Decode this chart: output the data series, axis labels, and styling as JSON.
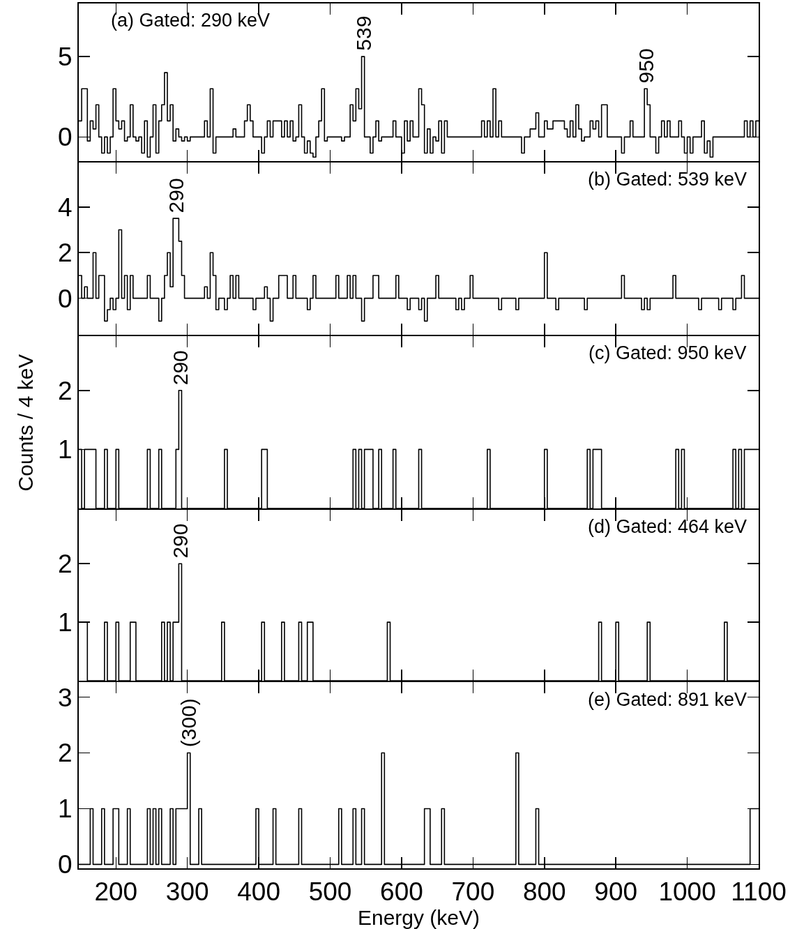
{
  "chart_data": [
    {
      "type": "step",
      "title": "(a) Gated: 290 keV",
      "color": "#000000",
      "xlim": [
        148,
        1100
      ],
      "xticks": [
        200,
        300,
        400,
        500,
        600,
        700,
        800,
        900,
        1000,
        1100
      ],
      "ylim": [
        -1.5,
        8.3
      ],
      "yticks": [
        0,
        5
      ],
      "tick_labels": "y",
      "x": [
        148,
        152,
        160,
        164,
        168,
        172,
        176,
        180,
        184,
        188,
        192,
        196,
        200,
        204,
        208,
        212,
        216,
        220,
        224,
        228,
        232,
        236,
        240,
        244,
        248,
        252,
        256,
        260,
        264,
        268,
        272,
        276,
        280,
        284,
        288,
        292,
        296,
        300,
        304,
        324,
        328,
        332,
        336,
        340,
        364,
        368,
        380,
        384,
        388,
        392,
        404,
        408,
        412,
        416,
        420,
        432,
        436,
        440,
        444,
        448,
        452,
        456,
        460,
        464,
        468,
        472,
        476,
        480,
        484,
        488,
        492,
        496,
        516,
        520,
        528,
        532,
        536,
        540,
        544,
        548,
        556,
        560,
        564,
        568,
        572,
        588,
        592,
        600,
        604,
        608,
        612,
        616,
        624,
        628,
        632,
        636,
        640,
        644,
        648,
        652,
        656,
        660,
        664,
        712,
        716,
        720,
        724,
        728,
        732,
        736,
        740,
        768,
        772,
        780,
        788,
        792,
        800,
        804,
        812,
        828,
        832,
        836,
        840,
        844,
        848,
        852,
        856,
        864,
        868,
        872,
        876,
        880,
        888,
        908,
        912,
        920,
        924,
        940,
        944,
        948,
        956,
        960,
        964,
        968,
        972,
        976,
        988,
        992,
        996,
        1000,
        1004,
        1008,
        1020,
        1024,
        1028,
        1032,
        1036,
        1080,
        1084,
        1088,
        1092,
        1096,
        1100
      ],
      "values": [
        1,
        3,
        -0.25,
        1,
        0.5,
        2,
        0,
        -1,
        0,
        -1,
        0,
        3,
        1,
        0.5,
        1,
        -0.25,
        0,
        2,
        0,
        -0.25,
        0,
        -1,
        1,
        -1.25,
        0,
        2,
        -1,
        1,
        2,
        4,
        1,
        2,
        -0.25,
        0.5,
        0,
        -0.25,
        0,
        -0.25,
        0,
        1,
        0,
        3,
        -1,
        0,
        0.5,
        0,
        1,
        2,
        1,
        0,
        -1,
        0,
        1,
        0,
        1,
        0,
        1,
        0,
        1,
        -0.25,
        0,
        2,
        0,
        -1,
        -0.25,
        -1,
        -1.25,
        0,
        1,
        3,
        -0.25,
        0,
        -0.25,
        0,
        2,
        1,
        3,
        1.75,
        5,
        0,
        -1,
        0,
        1,
        -0.25,
        0,
        1,
        0,
        -1,
        1,
        -0.25,
        1,
        0,
        3,
        2,
        -1,
        0.5,
        -1,
        0,
        -0.25,
        1,
        -1,
        1,
        0,
        1,
        0,
        1,
        0,
        3,
        0,
        1,
        0,
        -1,
        0,
        0.5,
        1.5,
        0,
        1,
        0.5,
        1,
        0.5,
        0,
        1,
        0,
        2,
        0.5,
        -0.25,
        0,
        1,
        0.5,
        1,
        0,
        2,
        0,
        -1,
        0,
        1,
        0,
        3,
        2,
        0,
        -1,
        0,
        1,
        0,
        1,
        0,
        1,
        0,
        -1,
        0,
        -1,
        0,
        1,
        -1,
        -0.25,
        -1.25,
        0,
        1,
        0,
        1,
        0,
        1,
        1
      ],
      "annotations": [
        {
          "text": "539",
          "x": 546,
          "y": 5
        },
        {
          "text": "950",
          "x": 942,
          "y": 3
        }
      ]
    },
    {
      "type": "step",
      "title": "(b) Gated: 539 keV",
      "color": "#000000",
      "xlim": [
        148,
        1100
      ],
      "xticks": [
        200,
        300,
        400,
        500,
        600,
        700,
        800,
        900,
        1000,
        1100
      ],
      "ylim": [
        -1.6,
        5.95
      ],
      "yticks": [
        0,
        2,
        4
      ],
      "tick_labels": "y",
      "x": [
        148,
        152,
        156,
        160,
        168,
        172,
        176,
        184,
        188,
        192,
        196,
        200,
        204,
        208,
        212,
        216,
        220,
        224,
        244,
        248,
        260,
        264,
        268,
        272,
        276,
        280,
        288,
        292,
        296,
        324,
        328,
        332,
        336,
        340,
        344,
        352,
        356,
        360,
        364,
        368,
        372,
        392,
        396,
        408,
        412,
        416,
        420,
        428,
        440,
        448,
        452,
        468,
        472,
        476,
        480,
        508,
        512,
        524,
        528,
        532,
        536,
        544,
        548,
        560,
        568,
        592,
        596,
        608,
        612,
        624,
        628,
        632,
        636,
        648,
        652,
        676,
        680,
        684,
        688,
        696,
        700,
        736,
        740,
        760,
        764,
        800,
        804,
        816,
        820,
        856,
        860,
        908,
        912,
        936,
        940,
        944,
        948,
        980,
        984,
        1016,
        1020,
        1044,
        1048,
        1064,
        1068,
        1076,
        1080,
        1100
      ],
      "values": [
        1,
        0,
        0.5,
        0,
        2,
        0,
        1,
        -1,
        -0.5,
        0,
        -0.5,
        0,
        3,
        0,
        1,
        -0.5,
        1,
        0,
        1,
        0,
        -1,
        0,
        1,
        2,
        0.5,
        3.5,
        2.5,
        1,
        0,
        0.5,
        0,
        2,
        1,
        -0.5,
        0,
        -0.5,
        0,
        1,
        0,
        1,
        0,
        -0.5,
        0,
        0.5,
        0,
        -1,
        0,
        1,
        0,
        1,
        0,
        -0.5,
        0,
        1,
        0,
        1,
        0,
        1,
        0,
        1,
        0,
        -1,
        0,
        1,
        0,
        1,
        0,
        -0.5,
        0,
        -0.5,
        0,
        -1,
        0,
        1,
        0,
        -0.5,
        0,
        -0.5,
        0,
        1,
        0,
        -0.5,
        0,
        -0.5,
        0,
        2,
        0,
        -0.5,
        0,
        -0.5,
        0,
        1,
        0,
        -0.5,
        0,
        -0.5,
        0,
        1,
        0,
        -0.5,
        0,
        -0.5,
        0,
        -0.5,
        0,
        1,
        0,
        0
      ],
      "annotations": [
        {
          "text": "290",
          "x": 284,
          "y": 3.5
        }
      ]
    },
    {
      "type": "step",
      "title": "(c) Gated: 950 keV",
      "ylabel": "Counts / 4 keV",
      "color": "#000000",
      "xlim": [
        148,
        1100
      ],
      "xticks": [
        200,
        300,
        400,
        500,
        600,
        700,
        800,
        900,
        1000,
        1100
      ],
      "ylim": [
        0,
        2.92
      ],
      "yticks": [
        1,
        2
      ],
      "tick_labels": "y",
      "x": [
        148,
        152,
        156,
        172,
        184,
        188,
        200,
        204,
        244,
        248,
        260,
        264,
        284,
        288,
        292,
        352,
        356,
        404,
        412,
        532,
        536,
        540,
        544,
        548,
        560,
        568,
        572,
        588,
        592,
        624,
        628,
        720,
        724,
        800,
        804,
        860,
        864,
        868,
        880,
        984,
        988,
        992,
        996,
        1064,
        1068,
        1072,
        1076,
        1080,
        1100
      ],
      "values": [
        1,
        0,
        1,
        0,
        1,
        0,
        1,
        0,
        1,
        0,
        1,
        0,
        1,
        2,
        0,
        1,
        0,
        1,
        0,
        1,
        0,
        1,
        0,
        1,
        0,
        1,
        0,
        1,
        0,
        1,
        0,
        1,
        0,
        1,
        0,
        1,
        0,
        1,
        0,
        1,
        0,
        1,
        0,
        1,
        0,
        1,
        0,
        1,
        1
      ],
      "annotations": [
        {
          "text": "290",
          "x": 290,
          "y": 2
        }
      ]
    },
    {
      "type": "step",
      "title": "(d) Gated: 464 keV",
      "color": "#000000",
      "xlim": [
        148,
        1100
      ],
      "xticks": [
        200,
        300,
        400,
        500,
        600,
        700,
        800,
        900,
        1000,
        1100
      ],
      "ylim": [
        0,
        2.92
      ],
      "yticks": [
        1,
        2
      ],
      "tick_labels": "y",
      "x": [
        148,
        160,
        184,
        188,
        200,
        204,
        220,
        228,
        264,
        268,
        272,
        276,
        280,
        288,
        292,
        348,
        352,
        404,
        408,
        432,
        436,
        456,
        460,
        468,
        476,
        580,
        584,
        876,
        880,
        900,
        904,
        944,
        948,
        1052,
        1056,
        1100
      ],
      "values": [
        1,
        0,
        1,
        0,
        1,
        0,
        1,
        0,
        1,
        0,
        1,
        0,
        1,
        2,
        0,
        1,
        0,
        1,
        0,
        1,
        0,
        1,
        0,
        1,
        0,
        1,
        0,
        1,
        0,
        1,
        0,
        1,
        0,
        1,
        0,
        0
      ],
      "annotations": [
        {
          "text": "290",
          "x": 290,
          "y": 2
        }
      ]
    },
    {
      "type": "step",
      "title": "(e) Gated: 891 keV",
      "xlabel": "Energy (keV)",
      "color": "#000000",
      "xlim": [
        148,
        1100
      ],
      "xticks": [
        200,
        300,
        400,
        500,
        600,
        700,
        800,
        900,
        1000,
        1100
      ],
      "ylim": [
        -0.07,
        3.27
      ],
      "yticks": [
        0,
        1,
        2,
        3
      ],
      "x": [
        148,
        164,
        168,
        180,
        184,
        196,
        204,
        216,
        220,
        244,
        248,
        252,
        256,
        260,
        264,
        276,
        280,
        284,
        300,
        304,
        316,
        320,
        396,
        400,
        420,
        424,
        456,
        460,
        512,
        516,
        532,
        536,
        544,
        548,
        572,
        576,
        632,
        640,
        656,
        660,
        760,
        764,
        788,
        792,
        1088,
        1100
      ],
      "values": [
        0,
        1,
        0,
        1,
        0,
        1,
        0,
        1,
        0,
        1,
        0,
        1,
        0,
        1,
        0,
        1,
        0,
        1,
        2,
        0,
        1,
        0,
        1,
        0,
        1,
        0,
        1,
        0,
        1,
        0,
        1,
        0,
        1,
        0,
        2,
        0,
        1,
        0,
        1,
        0,
        2,
        0,
        1,
        0,
        1,
        1
      ],
      "annotations": [
        {
          "text": "(300)",
          "x": 302,
          "y": 2
        }
      ]
    }
  ]
}
